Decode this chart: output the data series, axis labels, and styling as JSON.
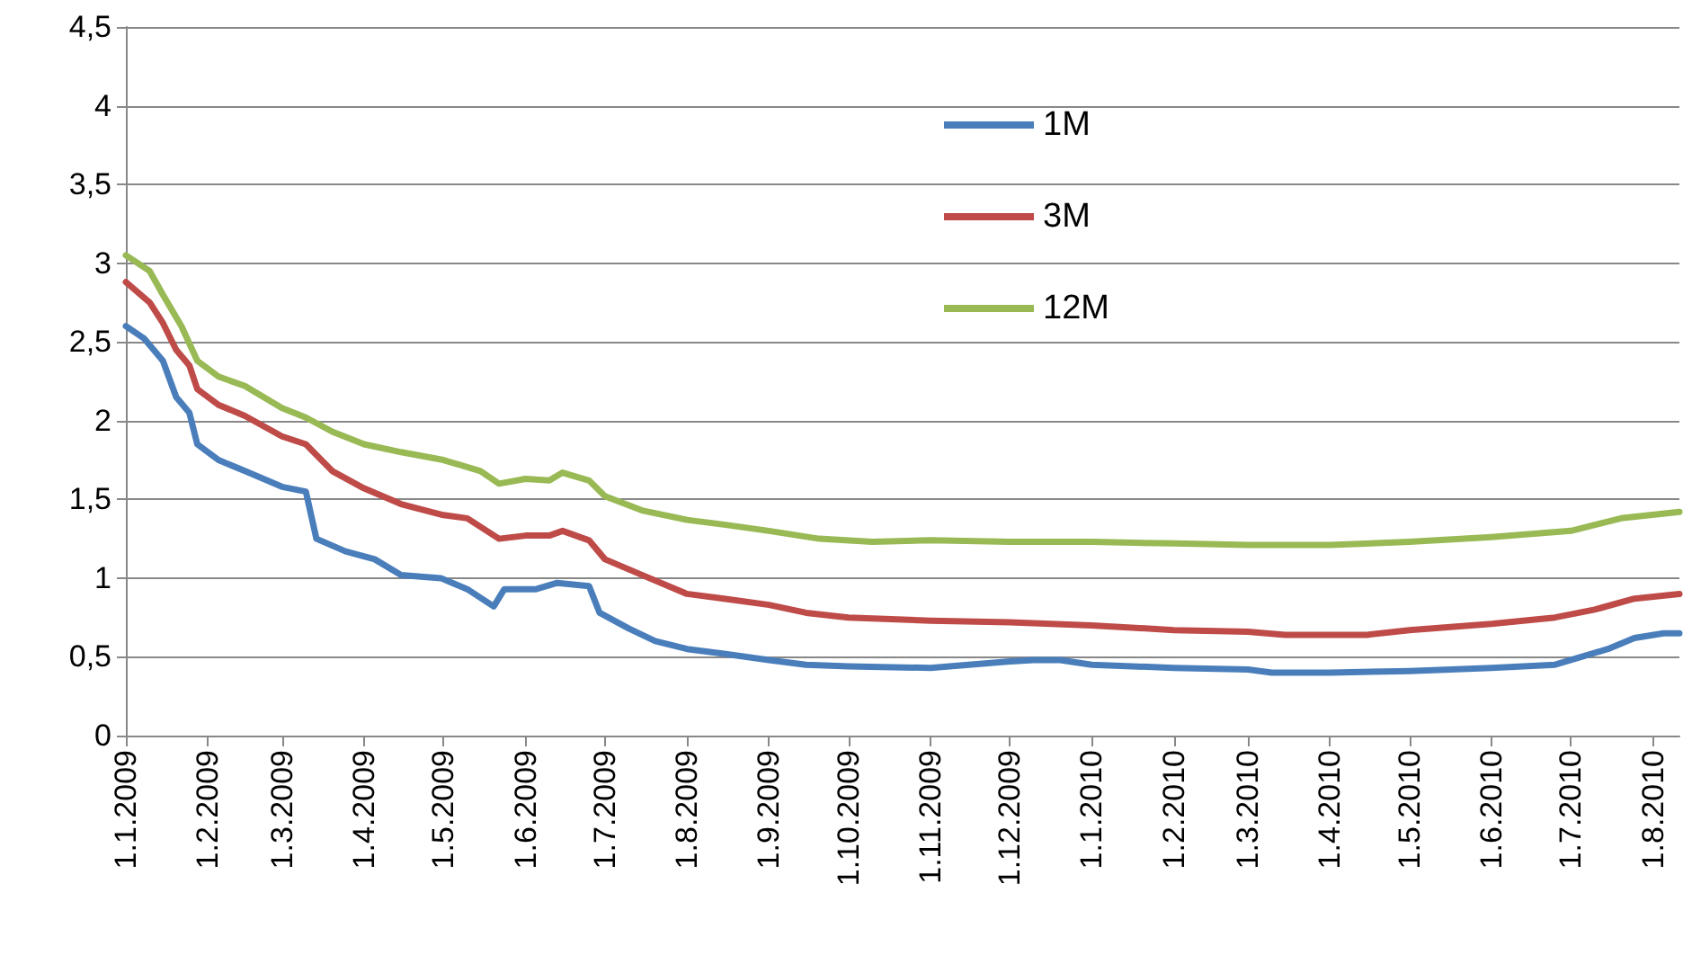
{
  "chart_data": {
    "type": "line",
    "x": [
      "2009-01-01",
      "2009-01-08",
      "2009-01-15",
      "2009-01-20",
      "2009-01-25",
      "2009-01-28",
      "2009-02-05",
      "2009-02-15",
      "2009-03-01",
      "2009-03-10",
      "2009-03-14",
      "2009-03-25",
      "2009-04-05",
      "2009-04-15",
      "2009-04-30",
      "2009-05-10",
      "2009-05-20",
      "2009-05-24",
      "2009-06-05",
      "2009-06-13",
      "2009-06-25",
      "2009-06-29",
      "2009-07-10",
      "2009-07-20",
      "2009-08-01",
      "2009-08-15",
      "2009-09-01",
      "2009-09-15",
      "2009-10-01",
      "2009-11-01",
      "2009-11-30",
      "2009-12-10",
      "2009-12-20",
      "2010-01-01",
      "2010-02-01",
      "2010-03-01",
      "2010-03-10",
      "2010-04-01",
      "2010-05-01",
      "2010-06-01",
      "2010-06-25",
      "2010-07-05",
      "2010-07-15",
      "2010-07-25",
      "2010-08-05",
      "2010-08-11"
    ],
    "series": [
      {
        "name": "1M",
        "color": "#4a7ebb",
        "values": [
          2.6,
          2.52,
          2.38,
          2.15,
          2.05,
          1.85,
          1.75,
          1.68,
          1.58,
          1.55,
          1.25,
          1.17,
          1.12,
          1.02,
          1.0,
          0.93,
          0.82,
          0.93,
          0.93,
          0.97,
          0.95,
          0.78,
          0.68,
          0.6,
          0.55,
          0.52,
          0.48,
          0.45,
          0.44,
          0.43,
          0.47,
          0.48,
          0.48,
          0.45,
          0.43,
          0.42,
          0.4,
          0.4,
          0.41,
          0.43,
          0.45,
          0.5,
          0.55,
          0.62,
          0.65,
          0.65
        ]
      },
      {
        "name": "3M",
        "color": "#be4b48",
        "x": [
          "2009-01-01",
          "2009-01-10",
          "2009-01-15",
          "2009-01-20",
          "2009-01-25",
          "2009-01-28",
          "2009-02-05",
          "2009-02-15",
          "2009-03-01",
          "2009-03-10",
          "2009-03-20",
          "2009-04-01",
          "2009-04-15",
          "2009-05-01",
          "2009-05-10",
          "2009-05-22",
          "2009-06-01",
          "2009-06-10",
          "2009-06-15",
          "2009-06-25",
          "2009-07-01",
          "2009-07-15",
          "2009-08-01",
          "2009-08-15",
          "2009-09-01",
          "2009-09-15",
          "2009-10-01",
          "2009-11-01",
          "2009-12-01",
          "2010-01-01",
          "2010-02-01",
          "2010-03-01",
          "2010-03-15",
          "2010-04-15",
          "2010-05-01",
          "2010-06-01",
          "2010-06-25",
          "2010-07-10",
          "2010-07-25",
          "2010-08-11"
        ],
        "values": [
          2.88,
          2.75,
          2.62,
          2.45,
          2.35,
          2.2,
          2.1,
          2.03,
          1.9,
          1.85,
          1.68,
          1.57,
          1.47,
          1.4,
          1.38,
          1.25,
          1.27,
          1.27,
          1.3,
          1.24,
          1.12,
          1.02,
          0.9,
          0.87,
          0.83,
          0.78,
          0.75,
          0.73,
          0.72,
          0.7,
          0.67,
          0.66,
          0.64,
          0.64,
          0.67,
          0.71,
          0.75,
          0.8,
          0.87,
          0.9
        ]
      },
      {
        "name": "12M",
        "color": "#98b954",
        "x": [
          "2009-01-01",
          "2009-01-10",
          "2009-01-15",
          "2009-01-22",
          "2009-01-28",
          "2009-02-05",
          "2009-02-15",
          "2009-03-01",
          "2009-03-10",
          "2009-03-20",
          "2009-04-01",
          "2009-04-15",
          "2009-05-01",
          "2009-05-15",
          "2009-05-22",
          "2009-06-01",
          "2009-06-10",
          "2009-06-15",
          "2009-06-25",
          "2009-07-01",
          "2009-07-15",
          "2009-08-01",
          "2009-08-15",
          "2009-09-01",
          "2009-09-20",
          "2009-10-10",
          "2009-11-01",
          "2009-12-01",
          "2010-01-01",
          "2010-02-01",
          "2010-03-01",
          "2010-04-01",
          "2010-05-01",
          "2010-06-01",
          "2010-07-01",
          "2010-07-20",
          "2010-08-11"
        ],
        "values": [
          3.05,
          2.95,
          2.8,
          2.6,
          2.38,
          2.28,
          2.22,
          2.08,
          2.02,
          1.93,
          1.85,
          1.8,
          1.75,
          1.68,
          1.6,
          1.63,
          1.62,
          1.67,
          1.62,
          1.52,
          1.43,
          1.37,
          1.34,
          1.3,
          1.25,
          1.23,
          1.24,
          1.23,
          1.23,
          1.22,
          1.21,
          1.21,
          1.23,
          1.26,
          1.3,
          1.38,
          1.42
        ]
      }
    ],
    "xlim": [
      "2009-01-01",
      "2010-08-11"
    ],
    "xticks": [
      {
        "value": "2009-01-01",
        "label": "1.1.2009"
      },
      {
        "value": "2009-02-01",
        "label": "1.2.2009"
      },
      {
        "value": "2009-03-01",
        "label": "1.3.2009"
      },
      {
        "value": "2009-04-01",
        "label": "1.4.2009"
      },
      {
        "value": "2009-05-01",
        "label": "1.5.2009"
      },
      {
        "value": "2009-06-01",
        "label": "1.6.2009"
      },
      {
        "value": "2009-07-01",
        "label": "1.7.2009"
      },
      {
        "value": "2009-08-01",
        "label": "1.8.2009"
      },
      {
        "value": "2009-09-01",
        "label": "1.9.2009"
      },
      {
        "value": "2009-10-01",
        "label": "1.10.2009"
      },
      {
        "value": "2009-11-01",
        "label": "1.11.2009"
      },
      {
        "value": "2009-12-01",
        "label": "1.12.2009"
      },
      {
        "value": "2010-01-01",
        "label": "1.1.2010"
      },
      {
        "value": "2010-02-01",
        "label": "1.2.2010"
      },
      {
        "value": "2010-03-01",
        "label": "1.3.2010"
      },
      {
        "value": "2010-04-01",
        "label": "1.4.2010"
      },
      {
        "value": "2010-05-01",
        "label": "1.5.2010"
      },
      {
        "value": "2010-06-01",
        "label": "1.6.2010"
      },
      {
        "value": "2010-07-01",
        "label": "1.7.2010"
      },
      {
        "value": "2010-08-01",
        "label": "1.8.2010"
      }
    ],
    "ylim": [
      0,
      4.5
    ],
    "yticks": [
      0,
      {
        "value": 0.5,
        "label": "0,5"
      },
      1,
      {
        "value": 1.5,
        "label": "1,5"
      },
      2,
      {
        "value": 2.5,
        "label": "2,5"
      },
      3,
      {
        "value": 3.5,
        "label": "3,5"
      },
      4,
      {
        "value": 4.5,
        "label": "4,5"
      }
    ],
    "grid": "y",
    "legend": "top",
    "marker": "none",
    "line_style": "solid"
  }
}
